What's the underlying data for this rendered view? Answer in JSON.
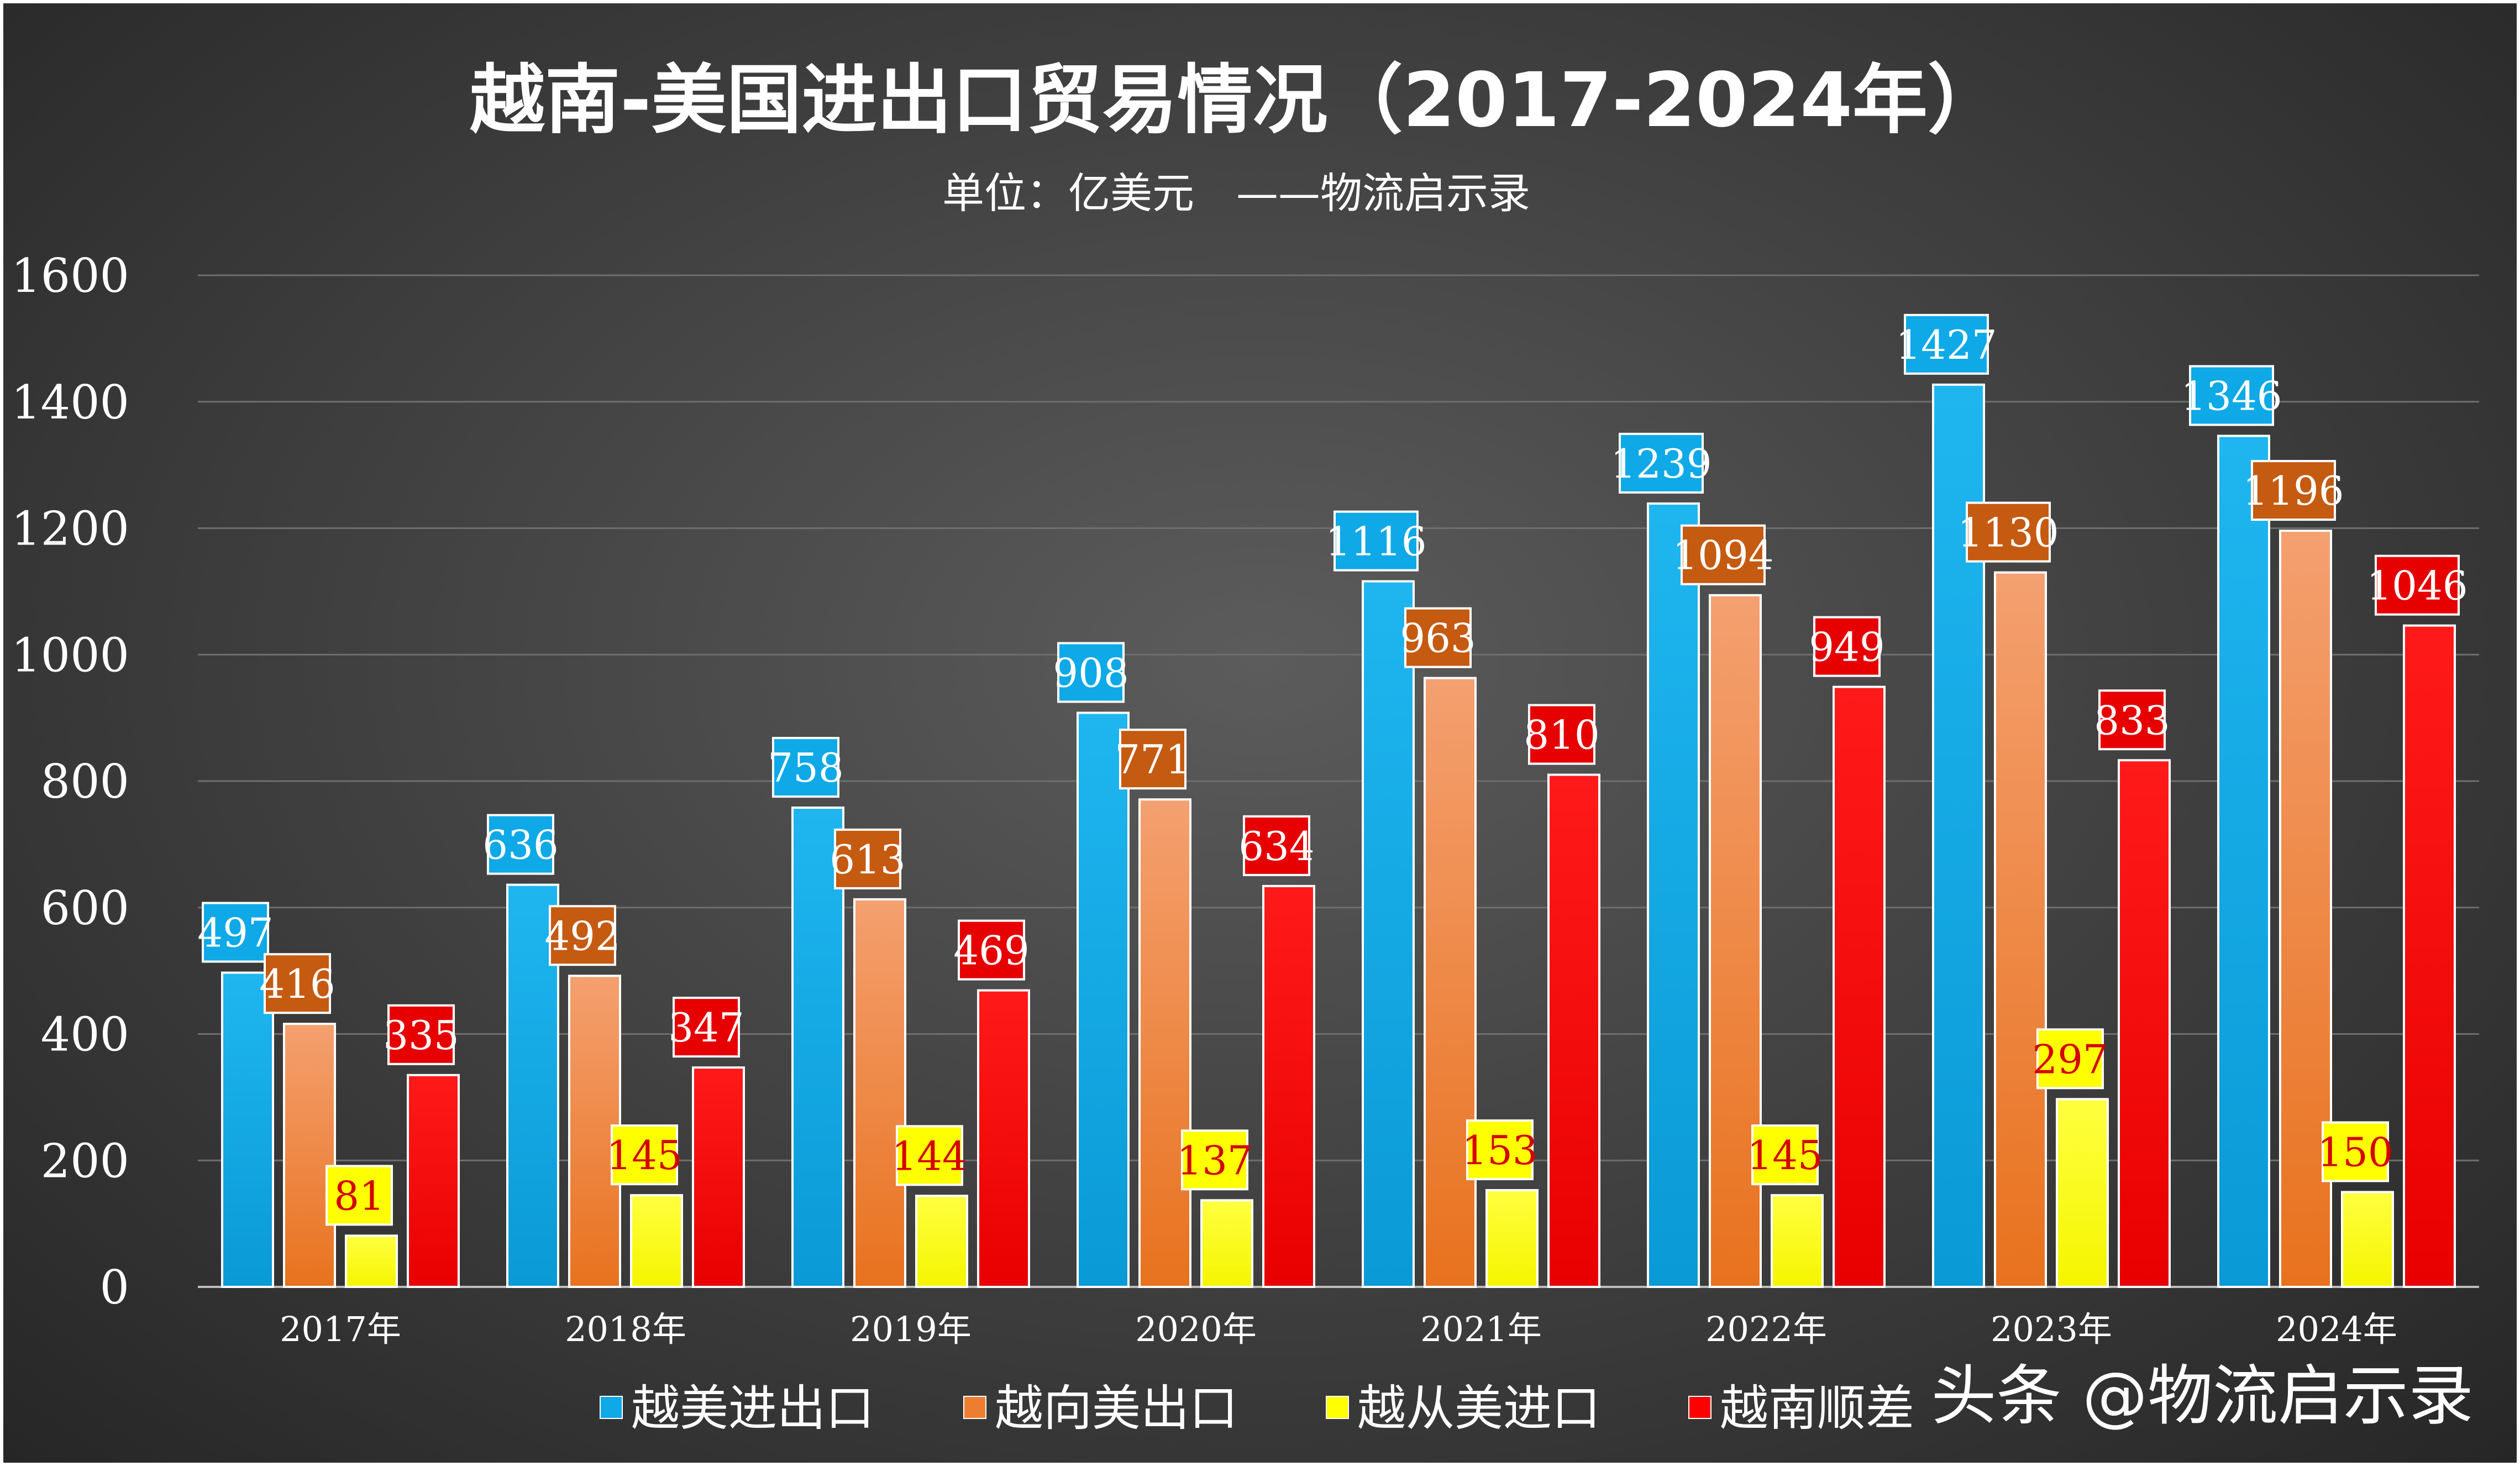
{
  "chart_data": {
    "type": "bar",
    "title": "越南-美国进出口贸易情况（2017-2024年）",
    "subtitle": "单位：亿美元　——物流启示录",
    "categories": [
      "2017年",
      "2018年",
      "2019年",
      "2020年",
      "2021年",
      "2022年",
      "2023年",
      "2024年"
    ],
    "series": [
      {
        "name": "越美进出口",
        "color": "#0ea9e6",
        "label_bg": "#0ea9e6",
        "label_fg": "#ffffff",
        "values": [
          497,
          636,
          758,
          908,
          1116,
          1239,
          1427,
          1346
        ]
      },
      {
        "name": "越向美出口",
        "color": "#ed7d31",
        "label_bg": "#c55a11",
        "label_fg": "#ffffff",
        "values": [
          416,
          492,
          613,
          771,
          963,
          1094,
          1130,
          1196
        ]
      },
      {
        "name": "越从美进口",
        "color": "#ffff00",
        "label_bg": "#ffff00",
        "label_fg": "#d40000",
        "values": [
          81,
          145,
          144,
          137,
          153,
          145,
          297,
          150
        ]
      },
      {
        "name": "越南顺差",
        "color": "#ff0000",
        "label_bg": "#e60000",
        "label_fg": "#ffffff",
        "values": [
          335,
          347,
          469,
          634,
          810,
          949,
          833,
          1046
        ]
      }
    ],
    "ylim": [
      0,
      1600
    ],
    "yticks": [
      0,
      200,
      400,
      600,
      800,
      1000,
      1200,
      1400,
      1600
    ],
    "grid": true,
    "legend_position": "bottom"
  },
  "watermark": "头条 @物流启示录"
}
